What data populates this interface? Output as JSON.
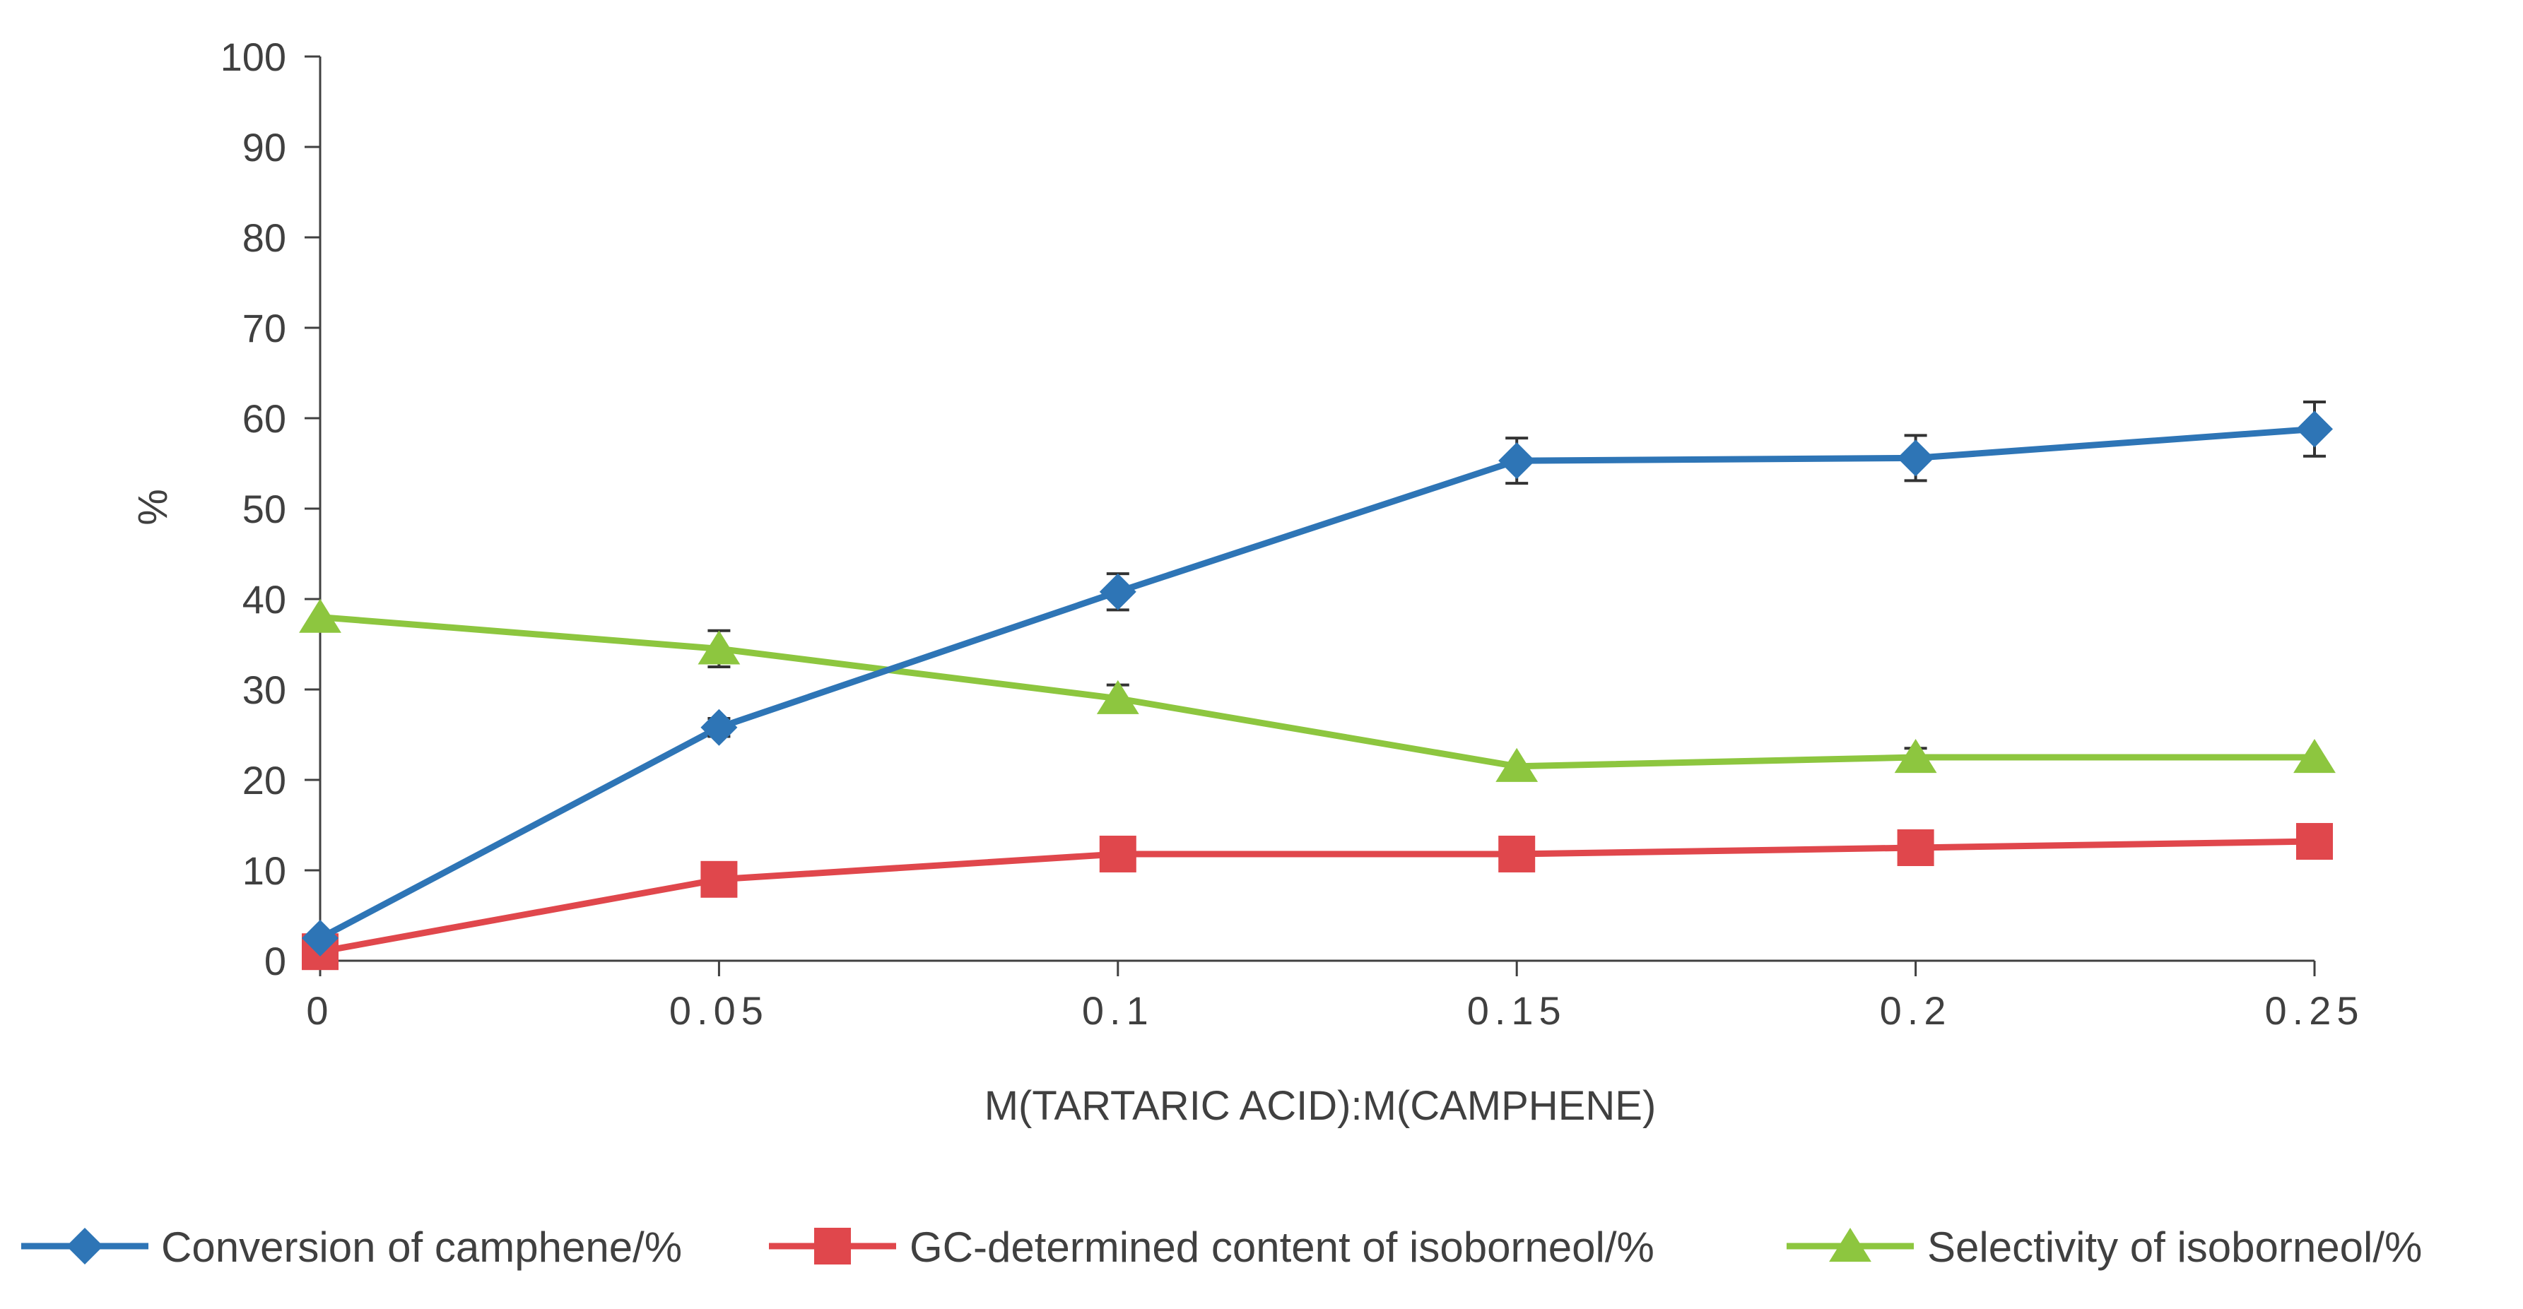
{
  "chart_data": {
    "type": "line",
    "title": "",
    "xlabel": "M(TARTARIC ACID):M(CAMPHENE)",
    "ylabel": "%",
    "x": [
      0,
      0.05,
      0.1,
      0.15,
      0.2,
      0.25
    ],
    "x_tick_labels": [
      "0",
      "0.05",
      "0.1",
      "0.15",
      "0.2",
      "0.25"
    ],
    "xlim": [
      0,
      0.25
    ],
    "ylim": [
      0,
      100
    ],
    "y_ticks": [
      0,
      10,
      20,
      30,
      40,
      50,
      60,
      70,
      80,
      90,
      100
    ],
    "grid": false,
    "legend_position": "bottom",
    "series": [
      {
        "name": "Conversion of camphene/%",
        "marker": "diamond",
        "color": "#2E75B6",
        "values": [
          2.5,
          25.8,
          40.8,
          55.3,
          55.6,
          58.8
        ],
        "error": [
          0,
          1.0,
          2.0,
          2.5,
          2.5,
          3.0
        ]
      },
      {
        "name": "GC-determined content of isoborneol/%",
        "marker": "square",
        "color": "#E0474C",
        "values": [
          1.0,
          9.0,
          11.8,
          11.8,
          12.5,
          13.2
        ],
        "error": [
          0,
          0,
          0,
          0,
          0,
          0
        ]
      },
      {
        "name": "Selectivity of isoborneol/%",
        "marker": "triangle",
        "color": "#8DC63F",
        "values": [
          38.0,
          34.5,
          29.0,
          21.5,
          22.5,
          22.5
        ],
        "error": [
          0,
          2.0,
          1.5,
          0,
          1.0,
          0
        ]
      }
    ]
  }
}
